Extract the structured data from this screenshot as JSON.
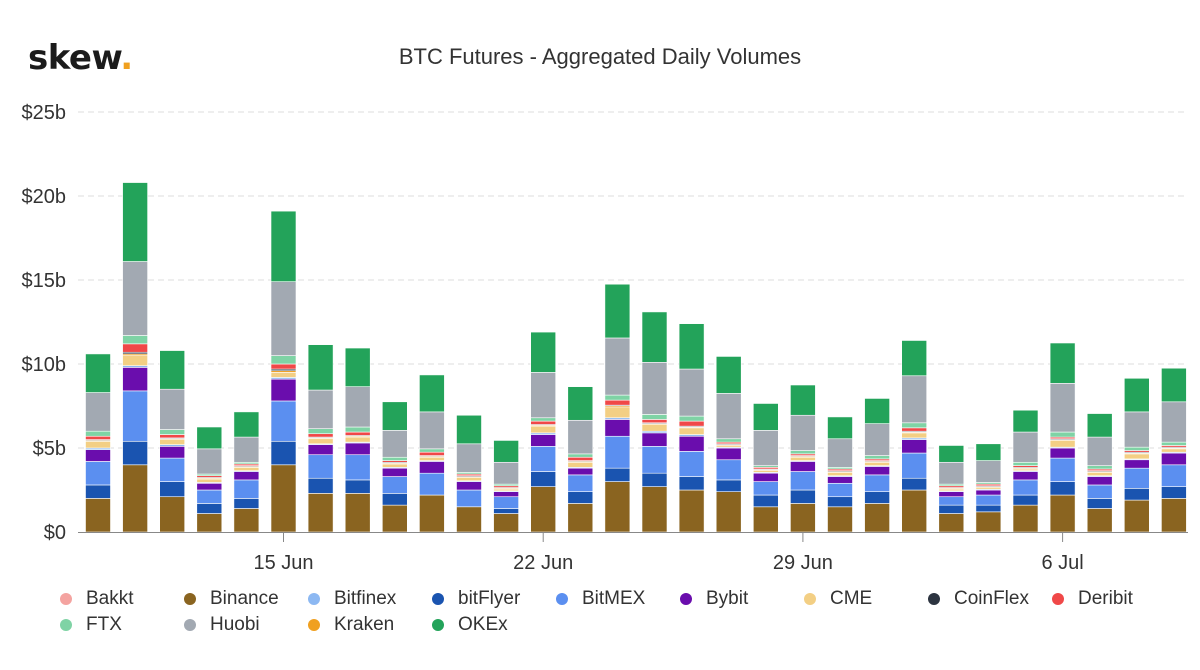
{
  "brand": {
    "text": "skew",
    "dot": "."
  },
  "chart_data": {
    "type": "bar",
    "stacked": true,
    "title": "BTC Futures - Aggregated Daily Volumes",
    "xlabel": "",
    "ylabel": "",
    "ylim": [
      0,
      25
    ],
    "yticks": [
      0,
      5,
      10,
      15,
      20,
      25
    ],
    "ytick_labels": [
      "$0",
      "$5b",
      "$10b",
      "$15b",
      "$20b",
      "$25b"
    ],
    "unit": "billion USD",
    "categories": [
      "2020-06-10",
      "2020-06-11",
      "2020-06-12",
      "2020-06-13",
      "2020-06-14",
      "2020-06-15",
      "2020-06-16",
      "2020-06-17",
      "2020-06-18",
      "2020-06-19",
      "2020-06-20",
      "2020-06-21",
      "2020-06-22",
      "2020-06-23",
      "2020-06-24",
      "2020-06-25",
      "2020-06-26",
      "2020-06-27",
      "2020-06-28",
      "2020-06-29",
      "2020-06-30",
      "2020-07-01",
      "2020-07-02",
      "2020-07-03",
      "2020-07-04",
      "2020-07-05",
      "2020-07-06",
      "2020-07-07",
      "2020-07-08",
      "2020-07-09"
    ],
    "xticks": [
      {
        "index": 5,
        "label": "15 Jun"
      },
      {
        "index": 12,
        "label": "22 Jun"
      },
      {
        "index": 19,
        "label": "29 Jun"
      },
      {
        "index": 26,
        "label": "6 Jul"
      }
    ],
    "grid": true,
    "legend_position": "bottom",
    "series": [
      {
        "name": "Binance",
        "color": "#8a6420",
        "values": [
          2.0,
          4.0,
          2.1,
          1.1,
          1.4,
          4.0,
          2.3,
          2.3,
          1.6,
          2.2,
          1.5,
          1.1,
          2.7,
          1.7,
          3.0,
          2.7,
          2.5,
          2.4,
          1.5,
          1.7,
          1.5,
          1.7,
          2.5,
          1.1,
          1.2,
          1.6,
          2.2,
          1.4,
          1.9,
          2.0
        ]
      },
      {
        "name": "bitFlyer",
        "color": "#1a54b0",
        "values": [
          0.8,
          1.4,
          0.9,
          0.6,
          0.6,
          1.4,
          0.9,
          0.8,
          0.7,
          0.0,
          0.0,
          0.3,
          0.9,
          0.7,
          0.8,
          0.8,
          0.8,
          0.7,
          0.7,
          0.8,
          0.6,
          0.7,
          0.7,
          0.5,
          0.4,
          0.6,
          0.8,
          0.6,
          0.7,
          0.7
        ]
      },
      {
        "name": "BitMEX",
        "color": "#5b8ff0",
        "values": [
          1.4,
          3.0,
          1.4,
          0.8,
          1.1,
          2.4,
          1.4,
          1.5,
          1.0,
          1.3,
          1.0,
          0.7,
          1.5,
          1.0,
          1.9,
          1.6,
          1.5,
          1.2,
          0.8,
          1.1,
          0.8,
          1.0,
          1.5,
          0.5,
          0.6,
          0.9,
          1.4,
          0.8,
          1.2,
          1.3
        ]
      },
      {
        "name": "Bybit",
        "color": "#6a0dad",
        "values": [
          0.7,
          1.4,
          0.7,
          0.4,
          0.5,
          1.3,
          0.6,
          0.7,
          0.5,
          0.7,
          0.5,
          0.3,
          0.7,
          0.4,
          1.0,
          0.8,
          0.9,
          0.7,
          0.5,
          0.6,
          0.4,
          0.5,
          0.8,
          0.3,
          0.3,
          0.5,
          0.6,
          0.5,
          0.5,
          0.7
        ]
      },
      {
        "name": "Bitfinex",
        "color": "#8cb8f2",
        "values": [
          0.1,
          0.1,
          0.1,
          0.05,
          0.05,
          0.1,
          0.05,
          0.05,
          0.05,
          0.05,
          0.05,
          0.05,
          0.1,
          0.05,
          0.1,
          0.1,
          0.1,
          0.05,
          0.05,
          0.05,
          0.05,
          0.05,
          0.1,
          0.05,
          0.05,
          0.05,
          0.05,
          0.05,
          0.05,
          0.05
        ]
      },
      {
        "name": "CME",
        "color": "#f3cf84",
        "values": [
          0.4,
          0.6,
          0.3,
          0.2,
          0.2,
          0.3,
          0.3,
          0.3,
          0.2,
          0.2,
          0.2,
          0.1,
          0.4,
          0.3,
          0.6,
          0.4,
          0.4,
          0.1,
          0.1,
          0.2,
          0.2,
          0.2,
          0.3,
          0.1,
          0.1,
          0.1,
          0.4,
          0.2,
          0.3,
          0.2
        ]
      },
      {
        "name": "Kraken",
        "color": "#f0a020",
        "values": [
          0.05,
          0.1,
          0.05,
          0.05,
          0.05,
          0.1,
          0.05,
          0.05,
          0.05,
          0.05,
          0.05,
          0.05,
          0.05,
          0.05,
          0.1,
          0.05,
          0.05,
          0.05,
          0.05,
          0.05,
          0.05,
          0.05,
          0.05,
          0.05,
          0.05,
          0.05,
          0.05,
          0.05,
          0.05,
          0.05
        ]
      },
      {
        "name": "CoinFlex",
        "color": "#2c3440",
        "values": [
          0.05,
          0.1,
          0.05,
          0.05,
          0.05,
          0.1,
          0.05,
          0.05,
          0.05,
          0.05,
          0.05,
          0.05,
          0.05,
          0.05,
          0.05,
          0.05,
          0.05,
          0.05,
          0.05,
          0.05,
          0.05,
          0.05,
          0.05,
          0.05,
          0.05,
          0.05,
          0.05,
          0.05,
          0.05,
          0.05
        ]
      },
      {
        "name": "Deribit",
        "color": "#f04848",
        "values": [
          0.2,
          0.5,
          0.2,
          0.1,
          0.1,
          0.3,
          0.2,
          0.2,
          0.1,
          0.2,
          0.1,
          0.1,
          0.2,
          0.2,
          0.3,
          0.2,
          0.3,
          0.1,
          0.1,
          0.1,
          0.1,
          0.1,
          0.2,
          0.1,
          0.1,
          0.1,
          0.1,
          0.1,
          0.1,
          0.1
        ]
      },
      {
        "name": "Bakkt",
        "color": "#f4a3a0",
        "values": [
          0,
          0,
          0,
          0,
          0,
          0,
          0,
          0,
          0,
          0,
          0,
          0,
          0,
          0,
          0,
          0,
          0,
          0,
          0,
          0,
          0,
          0,
          0,
          0,
          0,
          0,
          0,
          0,
          0,
          0
        ]
      },
      {
        "name": "FTX",
        "color": "#7fd3a5",
        "values": [
          0.3,
          0.5,
          0.3,
          0.1,
          0.1,
          0.5,
          0.3,
          0.3,
          0.2,
          0.2,
          0.1,
          0.1,
          0.2,
          0.2,
          0.3,
          0.3,
          0.3,
          0.2,
          0.1,
          0.2,
          0.1,
          0.2,
          0.3,
          0.1,
          0.1,
          0.2,
          0.3,
          0.2,
          0.2,
          0.2
        ]
      },
      {
        "name": "Huobi",
        "color": "#a2a9b2",
        "values": [
          2.3,
          4.4,
          2.4,
          1.5,
          1.5,
          4.4,
          2.3,
          2.4,
          1.6,
          2.2,
          1.7,
          1.3,
          2.7,
          2.0,
          3.4,
          3.1,
          2.8,
          2.7,
          2.1,
          2.1,
          1.7,
          1.9,
          2.8,
          1.3,
          1.3,
          1.8,
          2.9,
          1.7,
          2.1,
          2.4
        ]
      },
      {
        "name": "OKEx",
        "color": "#23a35a",
        "values": [
          2.3,
          4.7,
          2.3,
          1.3,
          1.5,
          4.2,
          2.7,
          2.3,
          1.7,
          2.2,
          1.7,
          1.3,
          2.4,
          2.0,
          3.2,
          3.0,
          2.7,
          2.2,
          1.6,
          1.8,
          1.3,
          1.5,
          2.1,
          1.0,
          1.0,
          1.3,
          2.4,
          1.4,
          2.0,
          2.0
        ]
      }
    ],
    "stack_order": [
      "Binance",
      "bitFlyer",
      "BitMEX",
      "Bybit",
      "Bitfinex",
      "CME",
      "Kraken",
      "CoinFlex",
      "Deribit",
      "Bakkt",
      "FTX",
      "Huobi",
      "OKEx"
    ],
    "legend_order": [
      "Bakkt",
      "Binance",
      "Bitfinex",
      "bitFlyer",
      "BitMEX",
      "Bybit",
      "CME",
      "CoinFlex",
      "Deribit",
      "FTX",
      "Huobi",
      "Kraken",
      "OKEx"
    ]
  }
}
